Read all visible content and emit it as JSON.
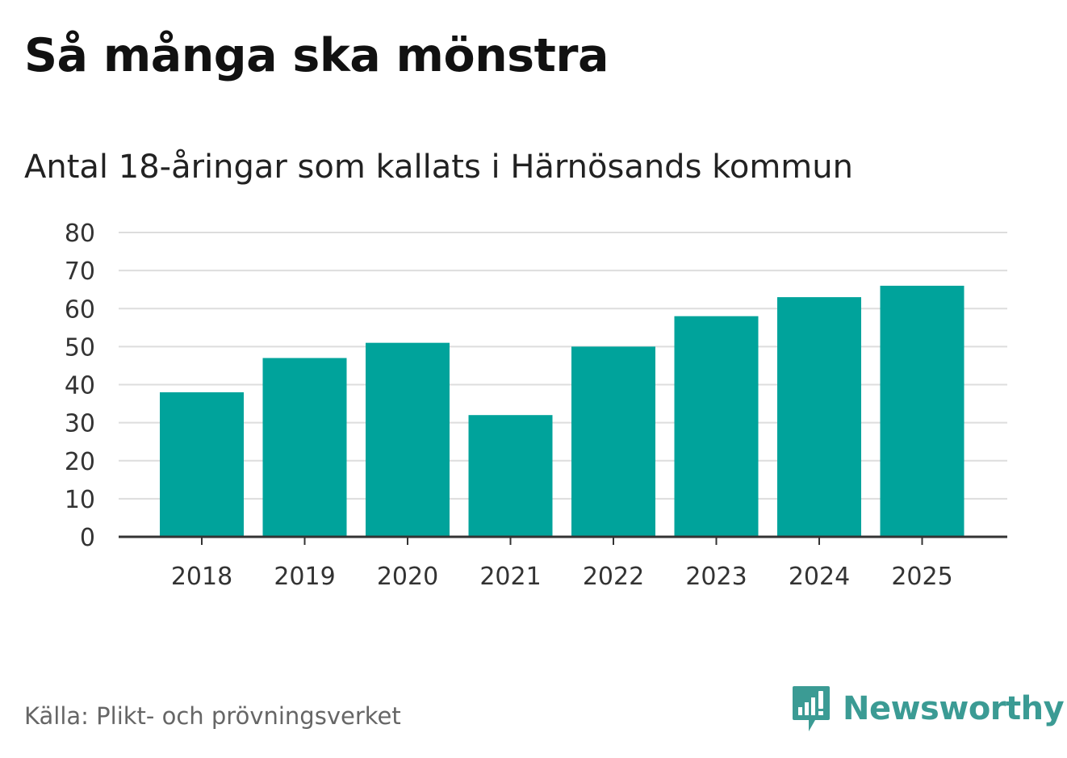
{
  "title": "Så många ska mönstra",
  "subtitle": "Antal 18-åringar som kallats i Härnösands kommun",
  "source": "Källa: Plikt- och prövningsverket",
  "brand": {
    "name": "Newsworthy",
    "icon": "newsworthy-logo-icon"
  },
  "colors": {
    "bar": "#00a39b",
    "grid": "#dddddd",
    "axis": "#333333",
    "brand": "#3b9b94"
  },
  "chart_data": {
    "type": "bar",
    "title": "Så många ska mönstra",
    "subtitle": "Antal 18-åringar som kallats i Härnösands kommun",
    "categories": [
      "2018",
      "2019",
      "2020",
      "2021",
      "2022",
      "2023",
      "2024",
      "2025"
    ],
    "values": [
      38,
      47,
      51,
      32,
      50,
      58,
      63,
      66
    ],
    "xlabel": "",
    "ylabel": "",
    "ylim": [
      0,
      80
    ],
    "yticks": [
      0,
      10,
      20,
      30,
      40,
      50,
      60,
      70,
      80
    ],
    "grid": true,
    "legend": "none"
  }
}
